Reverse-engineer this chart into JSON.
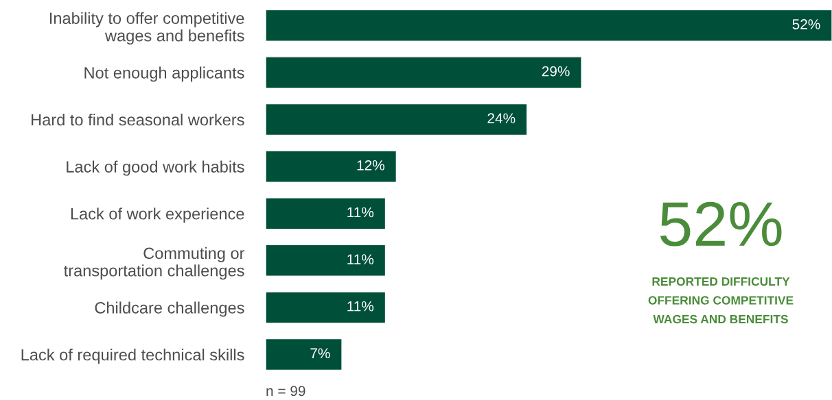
{
  "chart_data": {
    "type": "bar",
    "orientation": "horizontal",
    "categories": [
      "Inability to offer competitive\nwages and benefits",
      "Not enough applicants",
      "Hard to find seasonal workers",
      "Lack of good work habits",
      "Lack of work experience",
      "Commuting or\ntransportation challenges",
      "Childcare challenges",
      "Lack of required technical skills"
    ],
    "values": [
      52,
      29,
      24,
      12,
      11,
      11,
      11,
      7
    ],
    "value_labels": [
      "52%",
      "29%",
      "24%",
      "12%",
      "11%",
      "11%",
      "11%",
      "7%"
    ],
    "color": "#004f39",
    "grid": false,
    "legend": false,
    "annotations": [
      "n = 99",
      "52%",
      "REPORTED DIFFICULTY OFFERING COMPETITIVE WAGES AND BENEFITS"
    ]
  }
}
